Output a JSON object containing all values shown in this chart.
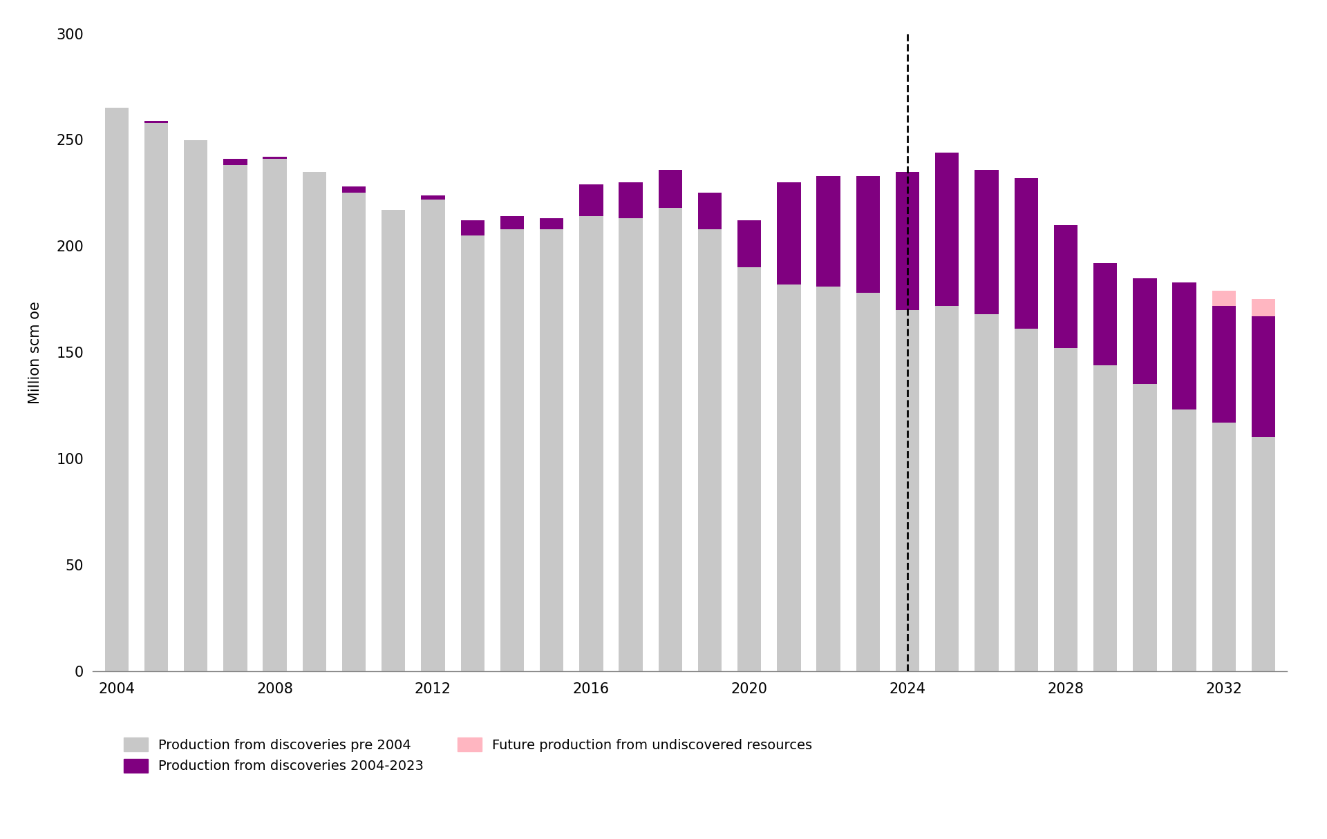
{
  "years": [
    2004,
    2005,
    2006,
    2007,
    2008,
    2009,
    2010,
    2011,
    2012,
    2013,
    2014,
    2015,
    2016,
    2017,
    2018,
    2019,
    2020,
    2021,
    2022,
    2023,
    2024,
    2025,
    2026,
    2027,
    2028,
    2029,
    2030,
    2031,
    2032,
    2033
  ],
  "pre2004": [
    265,
    258,
    250,
    238,
    241,
    235,
    225,
    217,
    222,
    205,
    208,
    208,
    214,
    213,
    218,
    208,
    190,
    182,
    181,
    178,
    170,
    172,
    168,
    161,
    152,
    144,
    135,
    123,
    117,
    110
  ],
  "disc2004_2023": [
    0,
    1,
    0,
    3,
    1,
    0,
    3,
    0,
    2,
    7,
    6,
    5,
    15,
    17,
    18,
    17,
    22,
    48,
    52,
    55,
    65,
    72,
    68,
    71,
    58,
    48,
    50,
    60,
    55,
    57
  ],
  "undiscovered": [
    0,
    0,
    0,
    0,
    0,
    0,
    0,
    0,
    0,
    0,
    0,
    0,
    0,
    0,
    0,
    0,
    0,
    0,
    0,
    0,
    0,
    0,
    0,
    0,
    0,
    0,
    0,
    0,
    7,
    8
  ],
  "color_pre2004": "#C8C8C8",
  "color_disc": "#800080",
  "color_undiscovered": "#FFB6C1",
  "dashed_line_year": 2024,
  "ylabel": "Million scm oe",
  "ylim": [
    0,
    300
  ],
  "yticks": [
    0,
    50,
    100,
    150,
    200,
    250,
    300
  ],
  "tick_years": [
    2004,
    2008,
    2012,
    2016,
    2020,
    2024,
    2028,
    2032
  ],
  "legend_labels": [
    "Production from discoveries pre 2004",
    "Production from discoveries 2004-2023",
    "Future production from undiscovered resources"
  ],
  "background_color": "#FFFFFF"
}
